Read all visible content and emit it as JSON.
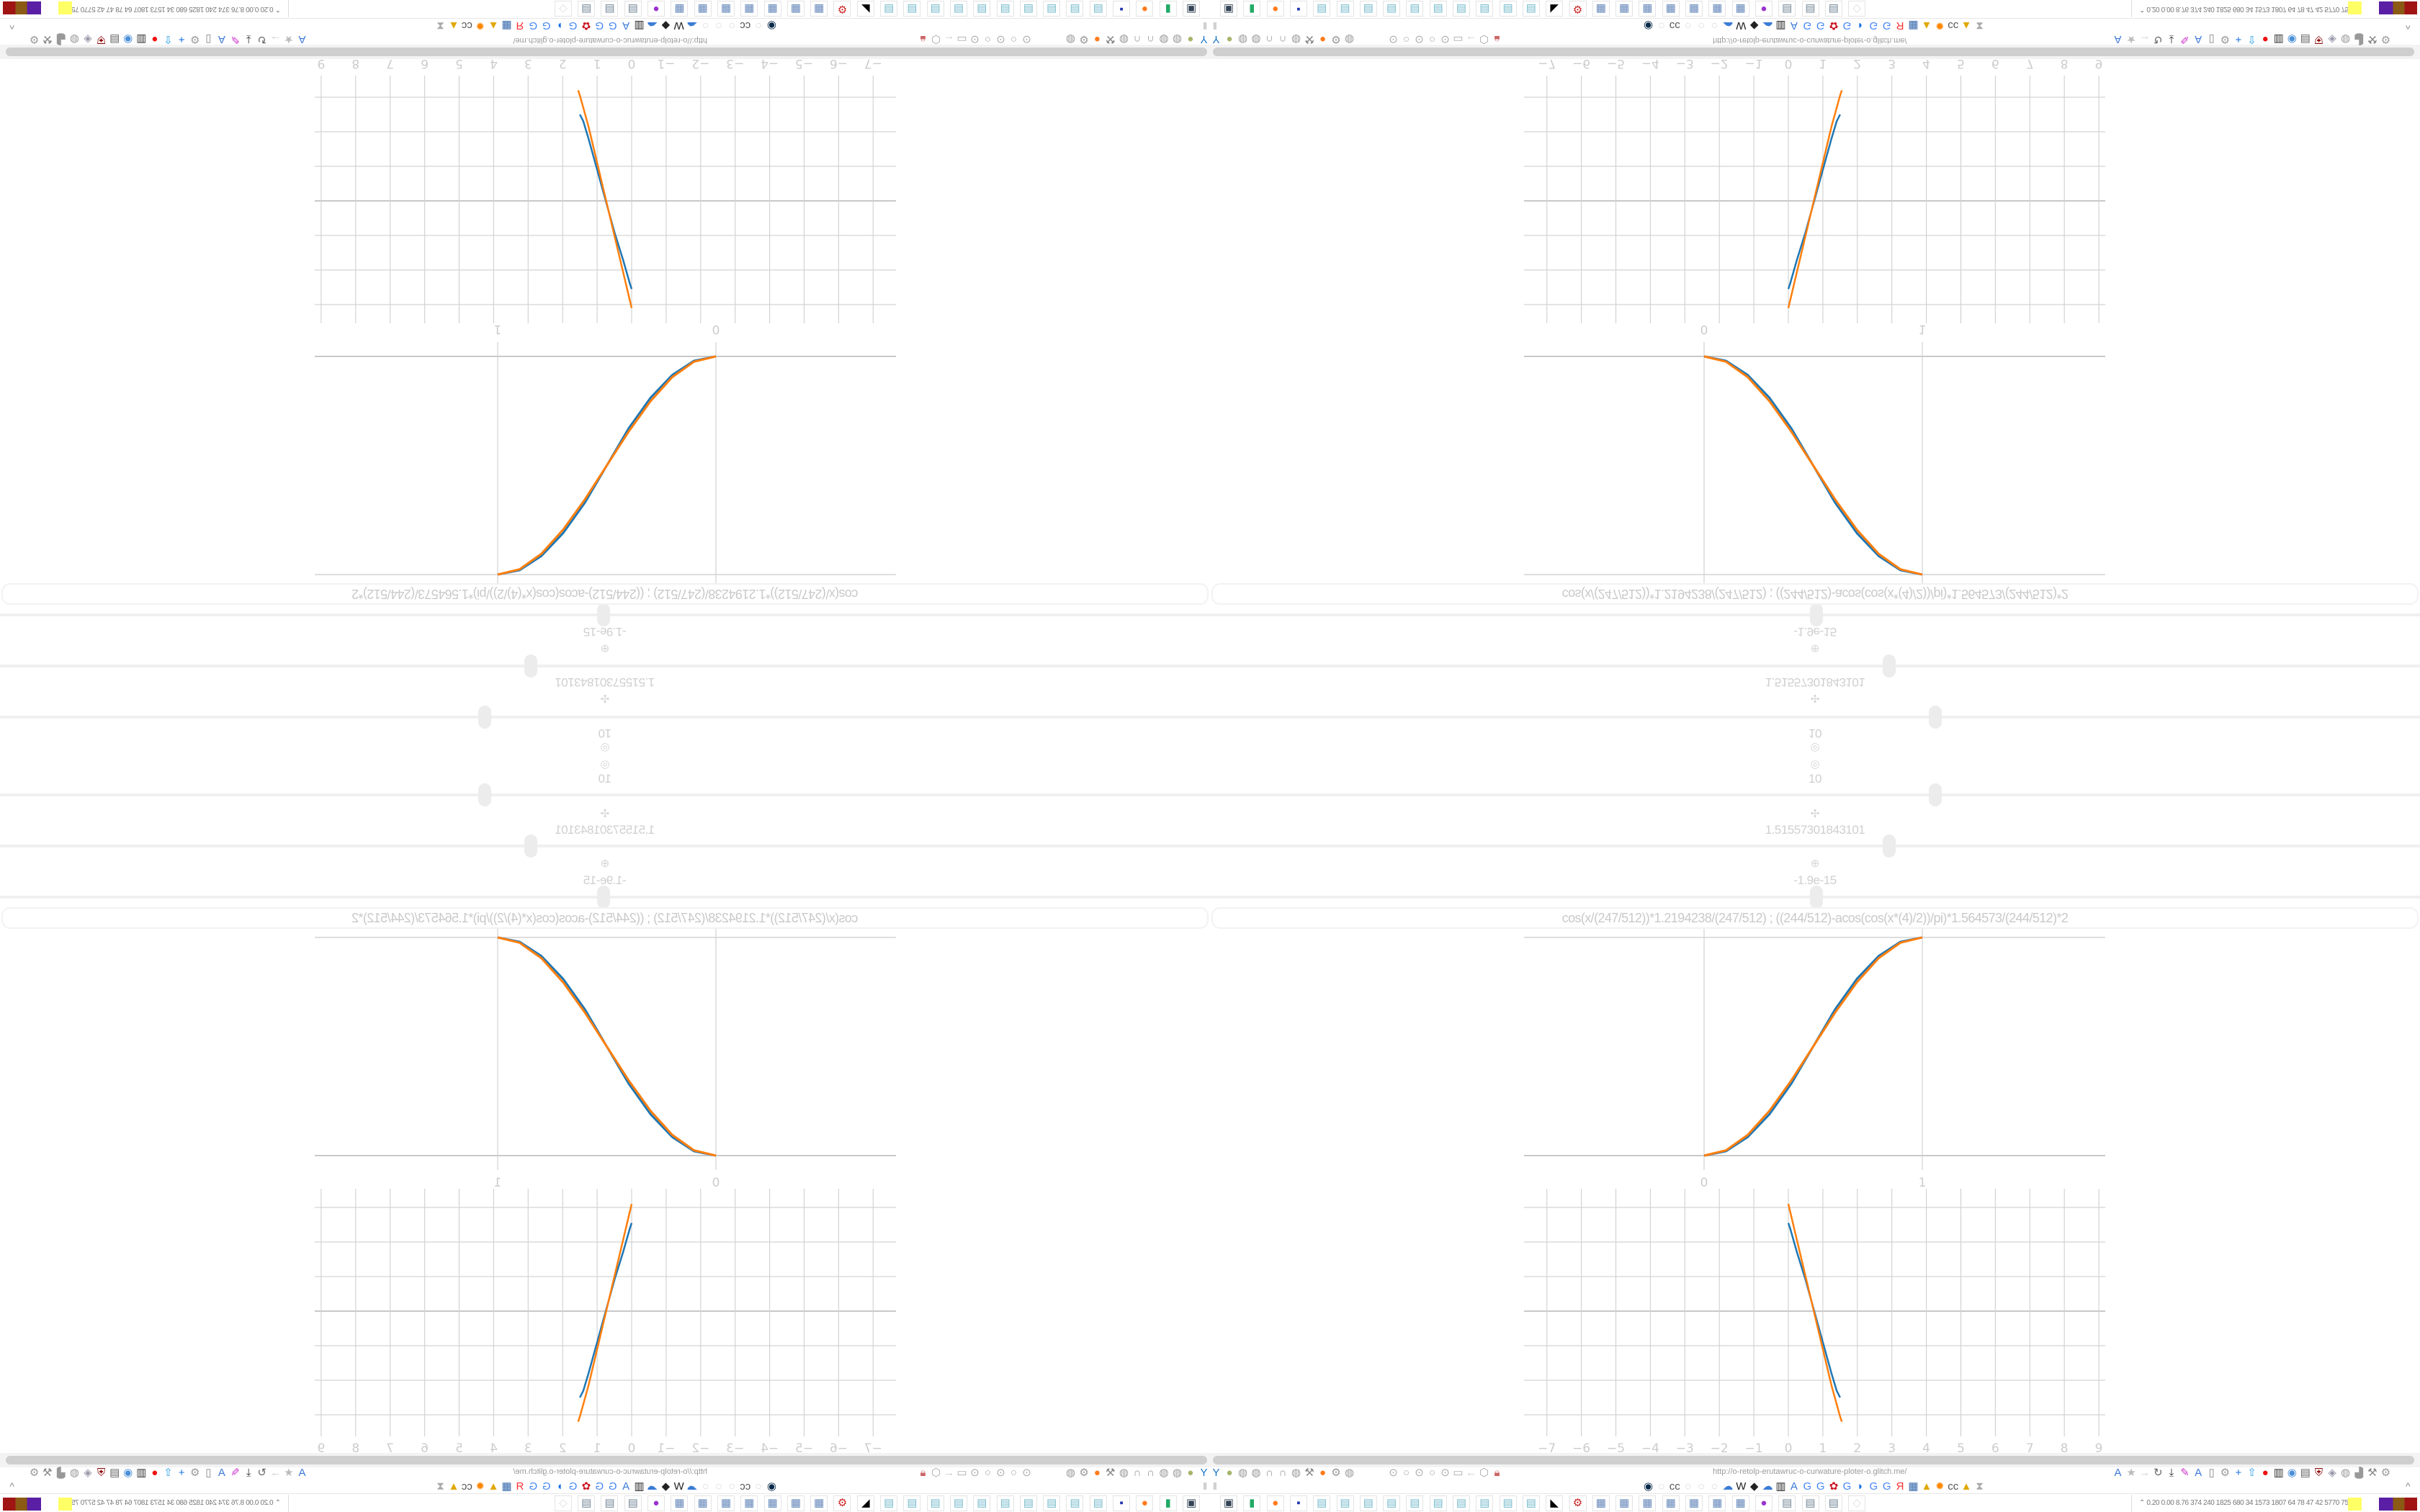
{
  "app": {
    "url": "http://o-retolp-erutawruc-o-curwature-ploter-o.glitch.me/",
    "formula": "cos(x/(247/512))*1.2194238/(247/512)    ;    ((244/512)-acos(cos(x*(4)/2))/pi)*1.564573/(244/512)*2",
    "params": [
      {
        "icon": "target-icon",
        "value": "10"
      },
      {
        "icon": "move-icon",
        "value": "1.51557301843101"
      },
      {
        "icon": "pivot-icon",
        "value": "-1.9e-15"
      }
    ],
    "slider_positions_percent": [
      60,
      56,
      50
    ],
    "status_numbers": "0.20 0.00 8.76 374 240 1825 680 34 1573 1807 64 78 47 42 5770 7598",
    "colors": {
      "series_blue": "#1f77b4",
      "series_orange": "#ff7f0e",
      "grid": "#d0d0d0"
    }
  },
  "toolbar": {
    "left_icons": [
      "filter-icon",
      "addon-icon",
      "globe-icon",
      "globe-icon",
      "headphones-icon",
      "headphones-icon",
      "globe-icon",
      "wrench-icon",
      "firefox-icon",
      "gear-icon",
      "globe-icon"
    ],
    "nav_icons": [
      "dot-icon",
      "circle-icon",
      "dot-icon",
      "circle-icon",
      "dot-icon",
      "folder-icon",
      "back-icon",
      "shield-icon",
      "lock-icon"
    ],
    "right_icons": [
      "translate-icon",
      "star-icon",
      "forward-icon",
      "reload-icon",
      "download-icon",
      "pen-icon",
      "translate-icon",
      "mouse-icon",
      "gear-icon",
      "plus-icon",
      "upload-icon",
      "record-icon",
      "trash-icon",
      "network-icon",
      "archive-icon",
      "ublock-icon",
      "privacy-icon",
      "globe-icon",
      "puzzle-icon",
      "wrench-icon",
      "gear-icon"
    ],
    "bookmark_icons": [
      "speaker-icon",
      "mute-icon",
      "cc-icon",
      "mute-icon",
      "mute-icon",
      "mute-icon",
      "cloud-icon",
      "wikipedia-icon",
      "chart-icon",
      "cloud-icon",
      "museum-icon",
      "translate-icon",
      "google-icon",
      "google-icon",
      "flower-icon",
      "google-icon",
      "drop-icon",
      "google-icon",
      "google-icon",
      "yandex-icon",
      "grid-icon",
      "image-icon",
      "sun-icon",
      "cc-icon",
      "image-icon",
      "hourglass-icon"
    ]
  },
  "taskbar": {
    "apps": [
      "monitor-icon",
      "terminal-icon",
      "firefox-icon",
      "floppy-icon",
      "notepad-icon",
      "notepad-icon",
      "notepad-icon",
      "notepad-icon",
      "notepad-icon",
      "notepad-icon",
      "notepad-icon",
      "notepad-icon",
      "notepad-icon",
      "notepad-icon",
      "inkscape-icon",
      "gear-red-icon",
      "calculator-icon",
      "calculator-icon",
      "calculator-icon",
      "calculator-icon",
      "calculator-icon",
      "calculator-icon",
      "calculator-icon",
      "mascot-icon",
      "scroll-icon",
      "scroll-icon",
      "scroll-icon",
      "ghost-icon"
    ]
  },
  "chart_data": [
    {
      "type": "line",
      "xlim": [
        0,
        1
      ],
      "ylim": [
        0,
        1
      ],
      "x_ticks": [
        "0",
        "1"
      ],
      "grid": true,
      "series": [
        {
          "color": "#1f77b4",
          "x": [
            0,
            0.1,
            0.2,
            0.3,
            0.4,
            0.5,
            0.6,
            0.7,
            0.8,
            0.9,
            1
          ],
          "y": [
            0,
            0.02,
            0.085,
            0.19,
            0.33,
            0.5,
            0.67,
            0.81,
            0.915,
            0.98,
            1
          ]
        },
        {
          "color": "#ff7f0e",
          "x": [
            0,
            0.1,
            0.2,
            0.3,
            0.4,
            0.5,
            0.6,
            0.7,
            0.8,
            0.9,
            1
          ],
          "y": [
            0,
            0.024,
            0.095,
            0.206,
            0.345,
            0.5,
            0.655,
            0.794,
            0.905,
            0.976,
            1
          ]
        }
      ]
    },
    {
      "type": "line",
      "xlim": [
        -7,
        9
      ],
      "ylim": [
        -3.5,
        3.5
      ],
      "x_ticks": [
        "−7",
        "−6",
        "−5",
        "−4",
        "−3",
        "−2",
        "−1",
        "0",
        "1",
        "2",
        "3",
        "4",
        "5",
        "6",
        "7",
        "8",
        "9"
      ],
      "grid": true,
      "series": [
        {
          "color": "#1f77b4",
          "x": [
            0,
            0.05,
            0.25,
            0.5,
            0.75,
            1,
            1.25,
            1.4,
            1.5
          ],
          "y": [
            2.55,
            2.4,
            1.7,
            0.9,
            0,
            -0.9,
            -1.8,
            -2.3,
            -2.5
          ]
        },
        {
          "color": "#ff7f0e",
          "x": [
            0,
            0.25,
            0.5,
            0.75,
            1,
            1.25,
            1.5,
            1.55
          ],
          "y": [
            3.1,
            2.05,
            1.0,
            -0.05,
            -1.1,
            -2.15,
            -3.05,
            -3.2
          ]
        }
      ]
    }
  ]
}
